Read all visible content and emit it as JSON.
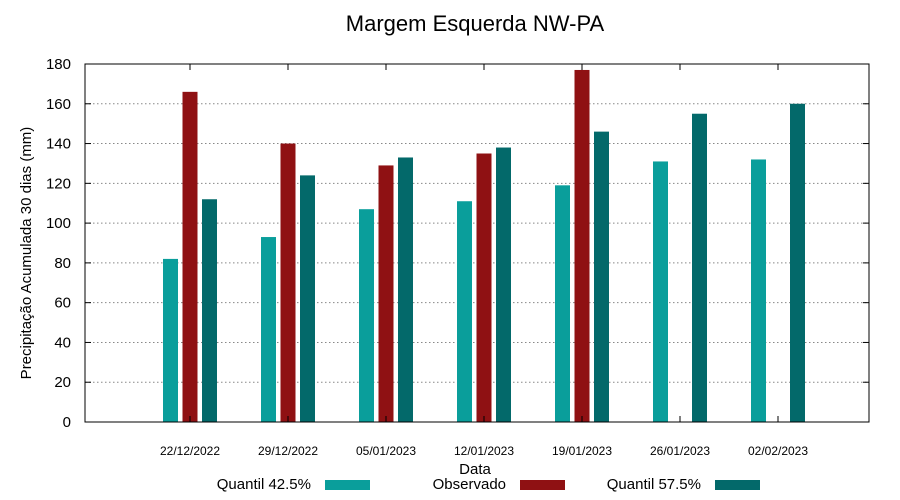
{
  "chart_data": {
    "type": "bar",
    "title": "Margem Esquerda NW-PA",
    "xlabel": "Data",
    "ylabel": "Precipitação Acumulada 30 dias (mm)",
    "ylim": [
      0,
      180
    ],
    "yticks": [
      "0",
      "20",
      "40",
      "60",
      "80",
      "100",
      "120",
      "140",
      "160",
      "180"
    ],
    "grid": true,
    "legend_position": "bottom",
    "categories": [
      "22/12/2022",
      "29/12/2022",
      "05/01/2023",
      "12/01/2023",
      "19/01/2023",
      "26/01/2023",
      "02/02/2023"
    ],
    "series": [
      {
        "name": "Quantil 42.5%",
        "color": "#0a9e9b",
        "values": [
          82,
          93,
          107,
          111,
          119,
          131,
          132
        ]
      },
      {
        "name": "Observado",
        "color": "#8f1113",
        "values": [
          166,
          140,
          129,
          135,
          177,
          null,
          null
        ]
      },
      {
        "name": "Quantil 57.5%",
        "color": "#03696a",
        "values": [
          112,
          124,
          133,
          138,
          146,
          155,
          160
        ]
      }
    ]
  }
}
